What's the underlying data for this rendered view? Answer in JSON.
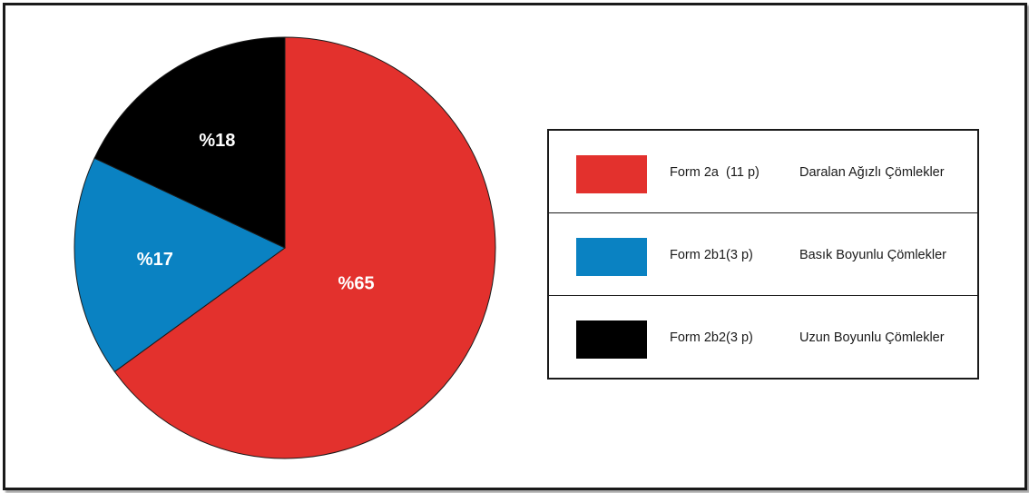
{
  "chart_data": {
    "type": "pie",
    "title": "",
    "slices": [
      {
        "label": "%65",
        "value": 65,
        "color": "#e3312d"
      },
      {
        "label": "%17",
        "value": 17,
        "color": "#0a82c2"
      },
      {
        "label": "%18",
        "value": 18,
        "color": "#000000"
      }
    ],
    "legend": [
      {
        "code": "Form 2a  (11 p)",
        "description": "Daralan Ağızlı Çömlekler",
        "color": "#e3312d"
      },
      {
        "code": "Form 2b1(3 p)",
        "description": "Basık Boyunlu Çömlekler",
        "color": "#0a82c2"
      },
      {
        "code": "Form 2b2(3 p)",
        "description": "Uzun Boyunlu Çömlekler",
        "color": "#000000"
      }
    ],
    "legend_position": "right"
  }
}
